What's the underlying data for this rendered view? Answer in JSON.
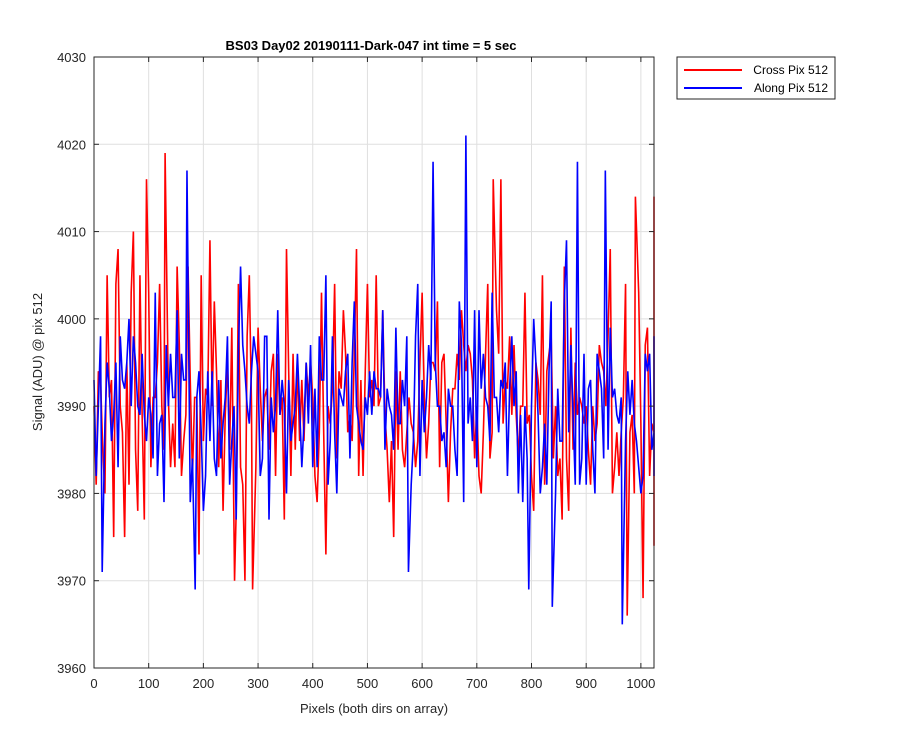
{
  "chart_data": {
    "type": "line",
    "title": "BS03 Day02 20190111-Dark-047 int time = 5 sec",
    "xlabel": "Pixels (both dirs on array)",
    "ylabel": "Signal (ADU) @ pix 512",
    "xlim": [
      0,
      1024
    ],
    "ylim": [
      3960,
      4030
    ],
    "xticks": [
      0,
      100,
      200,
      300,
      400,
      500,
      600,
      700,
      800,
      900,
      1000
    ],
    "yticks": [
      3960,
      3970,
      3980,
      3990,
      4000,
      4010,
      4020,
      4030
    ],
    "grid": true,
    "legend_position": "outside-top-right",
    "series": [
      {
        "name": "Cross Pix 512",
        "color": "#ff0000",
        "sample_step": 4,
        "values": [
          3990,
          3981,
          3994,
          3993,
          3985,
          3980,
          4005,
          3991,
          3993,
          3975,
          4004,
          4008,
          3990,
          3987,
          3975,
          3995,
          3981,
          4003,
          4010,
          3985,
          3978,
          4005,
          3989,
          3977,
          4016,
          4003,
          3983,
          3991,
          3991,
          3995,
          4004,
          3990,
          3985,
          3977,
          3991,
          3983,
          3988,
          3983,
          4006,
          3997,
          3982,
          3986,
          3989,
          4006,
          3993,
          3982,
          3991,
          3991,
          3973,
          4005,
          3986,
          3992,
          3991,
          4009,
          3990,
          4002,
          3994,
          3983,
          3993,
          3978,
          3989,
          3995,
          3985,
          3999,
          3982,
          3978,
          4004,
          3983,
          3981,
          3970,
          3998,
          4005,
          3990,
          3969,
          3983,
          3999,
          3992,
          3986,
          3991,
          3992,
          3985,
          3994,
          3996,
          3982,
          3996,
          3989,
          3991,
          3977,
          4008,
          3994,
          3982,
          3996,
          3985,
          3995,
          3986,
          3993,
          3986,
          3995,
          3991,
          3995,
          3991,
          3982,
          3979,
          3987,
          4003,
          3987,
          3973,
          3990,
          3988,
          3992,
          4004,
          3984,
          3994,
          3992,
          4001,
          3996,
          3987,
          3989,
          3986,
          3996,
          4008,
          3982,
          3993,
          3982,
          3994,
          4004,
          3991,
          3993,
          3990,
          4005,
          3990,
          3991,
          4001,
          3989,
          3985,
          3979,
          3986,
          3975,
          3994,
          3985,
          3994,
          3985,
          3983,
          3987,
          3991,
          3988,
          3987,
          3983,
          3986,
          3995,
          4003,
          3991,
          3984,
          3988,
          3995,
          3995,
          3994,
          4002,
          3983,
          3995,
          3996,
          3988,
          3979,
          3987,
          3992,
          3992,
          3996,
          3993,
          4001,
          3997,
          3994,
          3997,
          3996,
          3993,
          3984,
          3990,
          3982,
          3980,
          3987,
          3996,
          4004,
          3984,
          3987,
          3994,
          4001,
          3996,
          4016,
          3988,
          3993,
          3992,
          3998,
          3989,
          3997,
          3989,
          3984,
          3990,
          3990,
          4003,
          3988,
          3989,
          3982,
          3978,
          3995,
          3993,
          3989,
          4005,
          3981,
          3994,
          3996,
          3998,
          3984,
          3990,
          3982,
          3984,
          3977,
          4006,
          3984,
          3978,
          3999,
          3985,
          3995,
          3989,
          3991,
          3990,
          3988,
          3990,
          3985,
          3981,
          3990,
          3986,
          3988,
          3997,
          3995,
          3994,
          3990,
          3998,
          4008,
          3980,
          3983,
          3987,
          3982,
          3987,
          3991,
          4004,
          3991,
          3987,
          3989,
          3980,
          3994,
          4003,
          3988,
          3990,
          3997,
          3999,
          3982,
          3988,
          3987,
          4014,
          3989,
          3990,
          3974,
          3995,
          3988,
          3995,
          3993,
          3998,
          3983
        ]
      },
      {
        "name": "Along Pix 512",
        "color": "#0000ff",
        "sample_step": 4,
        "values": [
          3993,
          3982,
          3990,
          3998,
          3993,
          3988,
          3995,
          3992,
          3986,
          3989,
          3995,
          3983,
          3998,
          3993,
          3992,
          3995,
          4000,
          3990,
          3998,
          3995,
          3990,
          3989,
          3996,
          3989,
          3986,
          3991,
          3989,
          3984,
          4003,
          3982,
          3988,
          3989,
          3979,
          3997,
          3990,
          3996,
          3991,
          3991,
          4001,
          3984,
          3996,
          3993,
          3993,
          3990,
          3979,
          3984,
          3993,
          3991,
          3994,
          3987,
          3978,
          3982,
          3994,
          3986,
          3994,
          3984,
          3982,
          3993,
          3984,
          3988,
          3991,
          3998,
          3981,
          3986,
          3990,
          3977,
          3996,
          4006,
          3997,
          3994,
          3990,
          3988,
          3994,
          3998,
          3996,
          3994,
          3982,
          3984,
          3998,
          3998,
          3977,
          3991,
          3987,
          3990,
          4001,
          3989,
          3993,
          3990,
          3980,
          3993,
          3986,
          3988,
          3990,
          3996,
          3990,
          3983,
          3988,
          3995,
          3988,
          3997,
          3983,
          3992,
          3983,
          3998,
          3993,
          3993,
          4005,
          3981,
          3986,
          3998,
          3987,
          3980,
          3992,
          3991,
          3990,
          3994,
          3996,
          3984,
          3995,
          4002,
          3990,
          3988,
          3986,
          3985,
          3991,
          3989,
          3994,
          3989,
          3994,
          3992,
          3992,
          3991,
          4001,
          3985,
          3992,
          3990,
          3989,
          3985,
          3999,
          3988,
          3988,
          3993,
          3990,
          3998,
          3989,
          3981,
          3986,
          3998,
          4004,
          3982,
          3993,
          3987,
          3991,
          3997,
          3993,
          3988,
          3995,
          3990,
          3990,
          3986,
          3987,
          3983,
          3992,
          3990,
          3990,
          3985,
          3982,
          4002,
          3997,
          3979,
          3989,
          3988,
          3991,
          3986,
          4001,
          3983,
          4001,
          3992,
          3996,
          3991,
          3990,
          3986,
          4003,
          3991,
          3991,
          3987,
          3993,
          3992,
          3995,
          3982,
          3992,
          3998,
          3990,
          3994,
          3980,
          3989,
          3979,
          3990,
          3984,
          3994,
          3990,
          4000,
          3995,
          3989,
          3980,
          3983,
          3988,
          3981,
          3994,
          4002,
          3991,
          3980,
          3992,
          3986,
          3986,
          4002,
          4009,
          3987,
          3997,
          3989,
          3981,
          3986,
          3981,
          3984,
          3996,
          3981,
          3992,
          3993,
          3985,
          3980,
          3996,
          3994,
          3992,
          3984,
          3998,
          3985,
          3999,
          3991,
          3992,
          3989,
          3988,
          3991,
          3991,
          3986,
          3994,
          3989,
          3993,
          3988,
          3986,
          3983,
          3980,
          3982,
          3996,
          3994,
          3996,
          3985,
          3987,
          3995,
          3995,
          3995,
          3992,
          3998,
          3985,
          3989,
          3982,
          3994
        ]
      }
    ],
    "extremes": [
      {
        "series": 0,
        "x": 130,
        "y": 4019
      },
      {
        "series": 0,
        "x": 257,
        "y": 3970
      },
      {
        "series": 0,
        "x": 290,
        "y": 3969
      },
      {
        "series": 0,
        "x": 730,
        "y": 4016
      },
      {
        "series": 0,
        "x": 975,
        "y": 3966
      },
      {
        "series": 0,
        "x": 990,
        "y": 4014
      },
      {
        "series": 0,
        "x": 1004,
        "y": 3968
      },
      {
        "series": 1,
        "x": 170,
        "y": 4017
      },
      {
        "series": 1,
        "x": 185,
        "y": 3969
      },
      {
        "series": 1,
        "x": 620,
        "y": 4018
      },
      {
        "series": 1,
        "x": 680,
        "y": 4021
      },
      {
        "series": 1,
        "x": 838,
        "y": 3967
      },
      {
        "series": 1,
        "x": 884,
        "y": 4018
      },
      {
        "series": 1,
        "x": 935,
        "y": 4017
      },
      {
        "series": 1,
        "x": 966,
        "y": 3965
      },
      {
        "series": 1,
        "x": 15,
        "y": 3971
      },
      {
        "series": 1,
        "x": 575,
        "y": 3971
      },
      {
        "series": 1,
        "x": 795,
        "y": 3969
      }
    ]
  }
}
